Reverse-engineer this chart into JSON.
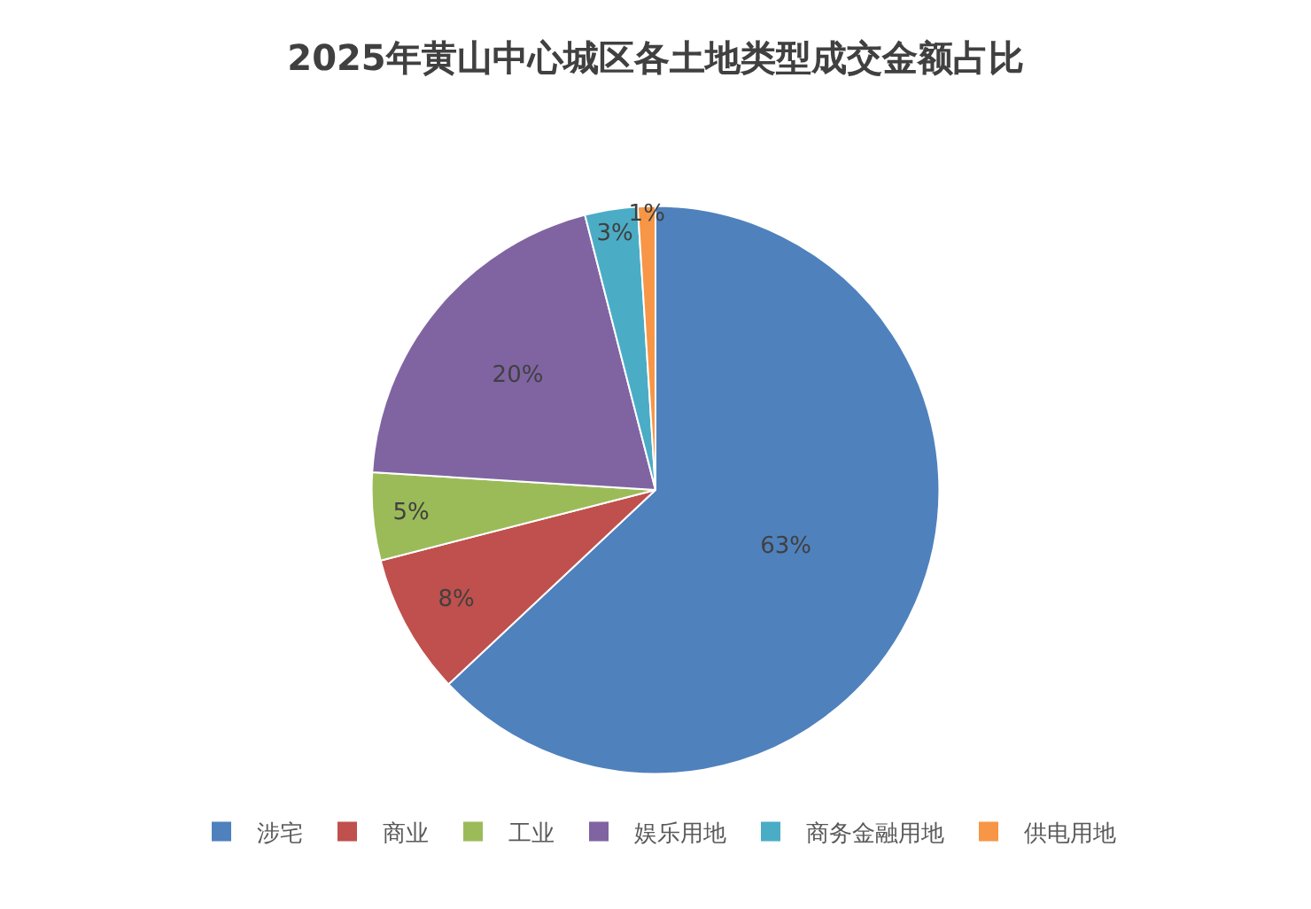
{
  "chart_data": {
    "type": "pie",
    "title": "2025年黄山中心城区各土地类型成交金额占比",
    "categories": [
      "涉宅",
      "商业",
      "工业",
      "娱乐用地",
      "商务金融用地",
      "供电用地"
    ],
    "values": [
      63,
      8,
      5,
      20,
      3,
      1
    ],
    "colors": [
      "#4f81bd",
      "#c0504d",
      "#9bbb59",
      "#8064a2",
      "#4bacc6",
      "#f79646"
    ],
    "value_labels": [
      "63%",
      "8%",
      "5%",
      "20%",
      "3%",
      "1%"
    ],
    "legend": "bottom"
  }
}
